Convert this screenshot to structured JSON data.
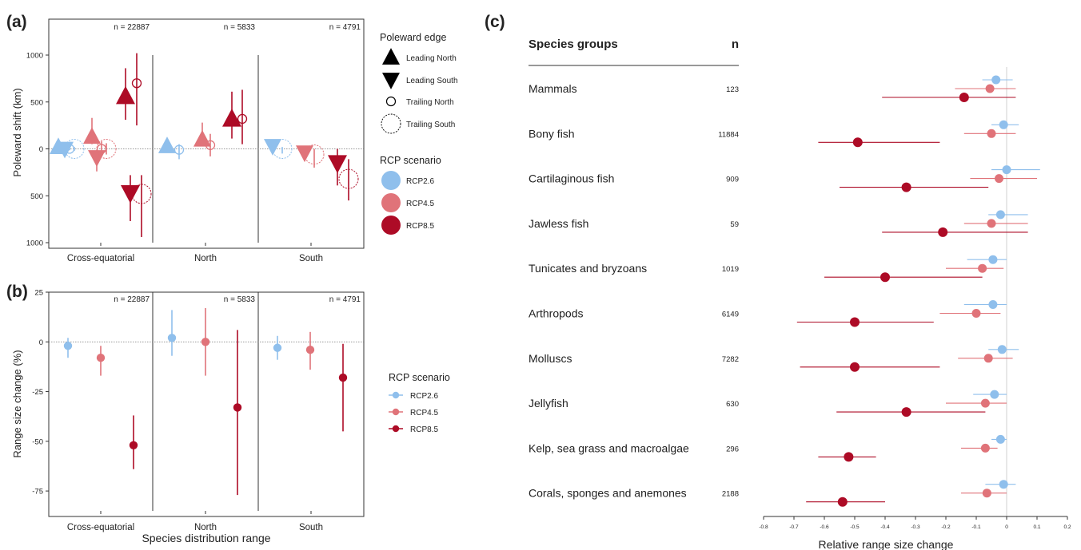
{
  "colors": {
    "RCP2.6": "#8fbfec",
    "RCP4.5": "#e07379",
    "RCP8.5": "#ad0b26",
    "line": "#333333"
  },
  "chart_data": [
    {
      "panel_label": "(a)",
      "type": "scatter",
      "ylabel": "Poleward shift (km)",
      "yticks": [
        "1000",
        "500",
        "0",
        "500",
        "1000"
      ],
      "ytick_values": [
        1000,
        500,
        0,
        -500,
        -1000
      ],
      "ylim": [
        -1000,
        1000
      ],
      "categories": [
        "Cross-equatorial",
        "North",
        "South"
      ],
      "n_labels": [
        "n = 22887",
        "n = 5833",
        "n = 4791"
      ],
      "legend_shape": {
        "title": "Poleward edge",
        "items": [
          "Leading North",
          "Leading South",
          "Trailing North",
          "Trailing South"
        ]
      },
      "legend_color": {
        "title": "RCP scenario",
        "items": [
          "RCP2.6",
          "RCP4.5",
          "RCP8.5"
        ]
      },
      "points": [
        {
          "cat": 0,
          "scenario": "RCP2.6",
          "edge": "Leading North",
          "y": 20,
          "lo": -20,
          "hi": 50
        },
        {
          "cat": 0,
          "scenario": "RCP2.6",
          "edge": "Leading South",
          "y": 0,
          "lo": -40,
          "hi": 30
        },
        {
          "cat": 0,
          "scenario": "RCP2.6",
          "edge": "Trailing North",
          "y": 0,
          "lo": -15,
          "hi": 15
        },
        {
          "cat": 0,
          "scenario": "RCP2.6",
          "edge": "Trailing South",
          "y": 0,
          "lo": -20,
          "hi": 20
        },
        {
          "cat": 0,
          "scenario": "RCP4.5",
          "edge": "Leading North",
          "y": 130,
          "lo": 50,
          "hi": 330
        },
        {
          "cat": 0,
          "scenario": "RCP4.5",
          "edge": "Leading South",
          "y": -90,
          "lo": -240,
          "hi": -10
        },
        {
          "cat": 0,
          "scenario": "RCP4.5",
          "edge": "Trailing North",
          "y": 0,
          "lo": -60,
          "hi": 80
        },
        {
          "cat": 0,
          "scenario": "RCP4.5",
          "edge": "Trailing South",
          "y": 0,
          "lo": -60,
          "hi": 60
        },
        {
          "cat": 0,
          "scenario": "RCP8.5",
          "edge": "Leading North",
          "y": 560,
          "lo": 310,
          "hi": 860
        },
        {
          "cat": 0,
          "scenario": "RCP8.5",
          "edge": "Leading South",
          "y": -470,
          "lo": -770,
          "hi": -280
        },
        {
          "cat": 0,
          "scenario": "RCP8.5",
          "edge": "Trailing North",
          "y": 700,
          "lo": 250,
          "hi": 1020
        },
        {
          "cat": 0,
          "scenario": "RCP8.5",
          "edge": "Trailing South",
          "y": -480,
          "lo": -940,
          "hi": -280
        },
        {
          "cat": 1,
          "scenario": "RCP2.6",
          "edge": "Leading North",
          "y": 30,
          "lo": -10,
          "hi": 60
        },
        {
          "cat": 1,
          "scenario": "RCP2.6",
          "edge": "Trailing North",
          "y": -10,
          "lo": -110,
          "hi": 50
        },
        {
          "cat": 1,
          "scenario": "RCP4.5",
          "edge": "Leading North",
          "y": 100,
          "lo": 30,
          "hi": 280
        },
        {
          "cat": 1,
          "scenario": "RCP4.5",
          "edge": "Trailing North",
          "y": 40,
          "lo": -80,
          "hi": 160
        },
        {
          "cat": 1,
          "scenario": "RCP8.5",
          "edge": "Leading North",
          "y": 320,
          "lo": 110,
          "hi": 610
        },
        {
          "cat": 1,
          "scenario": "RCP8.5",
          "edge": "Trailing North",
          "y": 320,
          "lo": 50,
          "hi": 630
        },
        {
          "cat": 2,
          "scenario": "RCP2.6",
          "edge": "Leading South",
          "y": 30,
          "lo": 0,
          "hi": 60
        },
        {
          "cat": 2,
          "scenario": "RCP2.6",
          "edge": "Trailing South",
          "y": 0,
          "lo": -50,
          "hi": 20
        },
        {
          "cat": 2,
          "scenario": "RCP4.5",
          "edge": "Leading South",
          "y": -40,
          "lo": -130,
          "hi": 10
        },
        {
          "cat": 2,
          "scenario": "RCP4.5",
          "edge": "Trailing South",
          "y": -60,
          "lo": -200,
          "hi": 0
        },
        {
          "cat": 2,
          "scenario": "RCP8.5",
          "edge": "Leading South",
          "y": -150,
          "lo": -390,
          "hi": 0
        },
        {
          "cat": 2,
          "scenario": "RCP8.5",
          "edge": "Trailing South",
          "y": -320,
          "lo": -550,
          "hi": -110
        }
      ]
    },
    {
      "panel_label": "(b)",
      "type": "scatter",
      "ylabel": "Range size change (%)",
      "xlabel": "Species distribution range",
      "yticks": [
        "25",
        "0",
        "-25",
        "-50",
        "-75"
      ],
      "ytick_values": [
        25,
        0,
        -25,
        -50,
        -75
      ],
      "ylim": [
        -85,
        25
      ],
      "categories": [
        "Cross-equatorial",
        "North",
        "South"
      ],
      "n_labels": [
        "n = 22887",
        "n = 5833",
        "n = 4791"
      ],
      "legend": {
        "title": "RCP scenario",
        "items": [
          "RCP2.6",
          "RCP4.5",
          "RCP8.5"
        ]
      },
      "points": [
        {
          "cat": 0,
          "scenario": "RCP2.6",
          "y": -2,
          "lo": -8,
          "hi": 2
        },
        {
          "cat": 0,
          "scenario": "RCP4.5",
          "y": -8,
          "lo": -17,
          "hi": -2
        },
        {
          "cat": 0,
          "scenario": "RCP8.5",
          "y": -52,
          "lo": -64,
          "hi": -37
        },
        {
          "cat": 1,
          "scenario": "RCP2.6",
          "y": 2,
          "lo": -7,
          "hi": 16
        },
        {
          "cat": 1,
          "scenario": "RCP4.5",
          "y": 0,
          "lo": -17,
          "hi": 17
        },
        {
          "cat": 1,
          "scenario": "RCP8.5",
          "y": -33,
          "lo": -77,
          "hi": 6
        },
        {
          "cat": 2,
          "scenario": "RCP2.6",
          "y": -3,
          "lo": -9,
          "hi": 3
        },
        {
          "cat": 2,
          "scenario": "RCP4.5",
          "y": -4,
          "lo": -14,
          "hi": 5
        },
        {
          "cat": 2,
          "scenario": "RCP8.5",
          "y": -18,
          "lo": -45,
          "hi": -1
        }
      ]
    },
    {
      "panel_label": "(c)",
      "type": "scatter",
      "header_group": "Species groups",
      "header_n": "n",
      "xlabel": "Relative range size change",
      "xlim": [
        -0.8,
        0.2
      ],
      "xticks": [
        "-0.8",
        "-0.7",
        "-0.6",
        "-0.5",
        "-0.4",
        "-0.3",
        "-0.2",
        "-0.1",
        "0",
        "0.1",
        "0.2"
      ],
      "xtick_values": [
        -0.8,
        -0.7,
        -0.6,
        -0.5,
        -0.4,
        -0.3,
        -0.2,
        -0.1,
        0,
        0.1,
        0.2
      ],
      "groups": [
        {
          "name": "Mammals",
          "n": "123",
          "values": [
            {
              "s": "RCP2.6",
              "x": -0.035,
              "lo": -0.08,
              "hi": 0.02
            },
            {
              "s": "RCP4.5",
              "x": -0.055,
              "lo": -0.17,
              "hi": 0.03
            },
            {
              "s": "RCP8.5",
              "x": -0.14,
              "lo": -0.41,
              "hi": 0.03
            }
          ]
        },
        {
          "name": "Bony fish",
          "n": "11884",
          "values": [
            {
              "s": "RCP2.6",
              "x": -0.01,
              "lo": -0.05,
              "hi": 0.04
            },
            {
              "s": "RCP4.5",
              "x": -0.05,
              "lo": -0.14,
              "hi": 0.03
            },
            {
              "s": "RCP8.5",
              "x": -0.49,
              "lo": -0.62,
              "hi": -0.22
            }
          ]
        },
        {
          "name": "Cartilaginous fish",
          "n": "909",
          "values": [
            {
              "s": "RCP2.6",
              "x": 0,
              "lo": -0.05,
              "hi": 0.11
            },
            {
              "s": "RCP4.5",
              "x": -0.025,
              "lo": -0.12,
              "hi": 0.1
            },
            {
              "s": "RCP8.5",
              "x": -0.33,
              "lo": -0.55,
              "hi": -0.06
            }
          ]
        },
        {
          "name": "Jawless fish",
          "n": "59",
          "values": [
            {
              "s": "RCP2.6",
              "x": -0.02,
              "lo": -0.06,
              "hi": 0.07
            },
            {
              "s": "RCP4.5",
              "x": -0.05,
              "lo": -0.14,
              "hi": 0.07
            },
            {
              "s": "RCP8.5",
              "x": -0.21,
              "lo": -0.41,
              "hi": 0.07
            }
          ]
        },
        {
          "name": "Tunicates and bryzoans",
          "n": "1019",
          "values": [
            {
              "s": "RCP2.6",
              "x": -0.045,
              "lo": -0.13,
              "hi": 0
            },
            {
              "s": "RCP4.5",
              "x": -0.08,
              "lo": -0.2,
              "hi": -0.01
            },
            {
              "s": "RCP8.5",
              "x": -0.4,
              "lo": -0.6,
              "hi": -0.08
            }
          ]
        },
        {
          "name": "Arthropods",
          "n": "6149",
          "values": [
            {
              "s": "RCP2.6",
              "x": -0.045,
              "lo": -0.14,
              "hi": 0
            },
            {
              "s": "RCP4.5",
              "x": -0.1,
              "lo": -0.22,
              "hi": -0.02
            },
            {
              "s": "RCP8.5",
              "x": -0.5,
              "lo": -0.69,
              "hi": -0.24
            }
          ]
        },
        {
          "name": "Molluscs",
          "n": "7282",
          "values": [
            {
              "s": "RCP2.6",
              "x": -0.015,
              "lo": -0.06,
              "hi": 0.04
            },
            {
              "s": "RCP4.5",
              "x": -0.06,
              "lo": -0.16,
              "hi": 0.02
            },
            {
              "s": "RCP8.5",
              "x": -0.5,
              "lo": -0.68,
              "hi": -0.22
            }
          ]
        },
        {
          "name": "Jellyfish",
          "n": "630",
          "values": [
            {
              "s": "RCP2.6",
              "x": -0.04,
              "lo": -0.11,
              "hi": 0
            },
            {
              "s": "RCP4.5",
              "x": -0.07,
              "lo": -0.2,
              "hi": 0
            },
            {
              "s": "RCP8.5",
              "x": -0.33,
              "lo": -0.56,
              "hi": -0.07
            }
          ]
        },
        {
          "name": "Kelp, sea grass and macroalgae",
          "n": "296",
          "values": [
            {
              "s": "RCP2.6",
              "x": -0.02,
              "lo": -0.05,
              "hi": 0
            },
            {
              "s": "RCP4.5",
              "x": -0.07,
              "lo": -0.15,
              "hi": -0.03
            },
            {
              "s": "RCP8.5",
              "x": -0.52,
              "lo": -0.62,
              "hi": -0.43
            }
          ]
        },
        {
          "name": "Corals, sponges and anemones",
          "n": "2188",
          "values": [
            {
              "s": "RCP2.6",
              "x": -0.01,
              "lo": -0.07,
              "hi": 0.03
            },
            {
              "s": "RCP4.5",
              "x": -0.065,
              "lo": -0.15,
              "hi": 0
            },
            {
              "s": "RCP8.5",
              "x": -0.54,
              "lo": -0.66,
              "hi": -0.4
            }
          ]
        }
      ]
    }
  ]
}
